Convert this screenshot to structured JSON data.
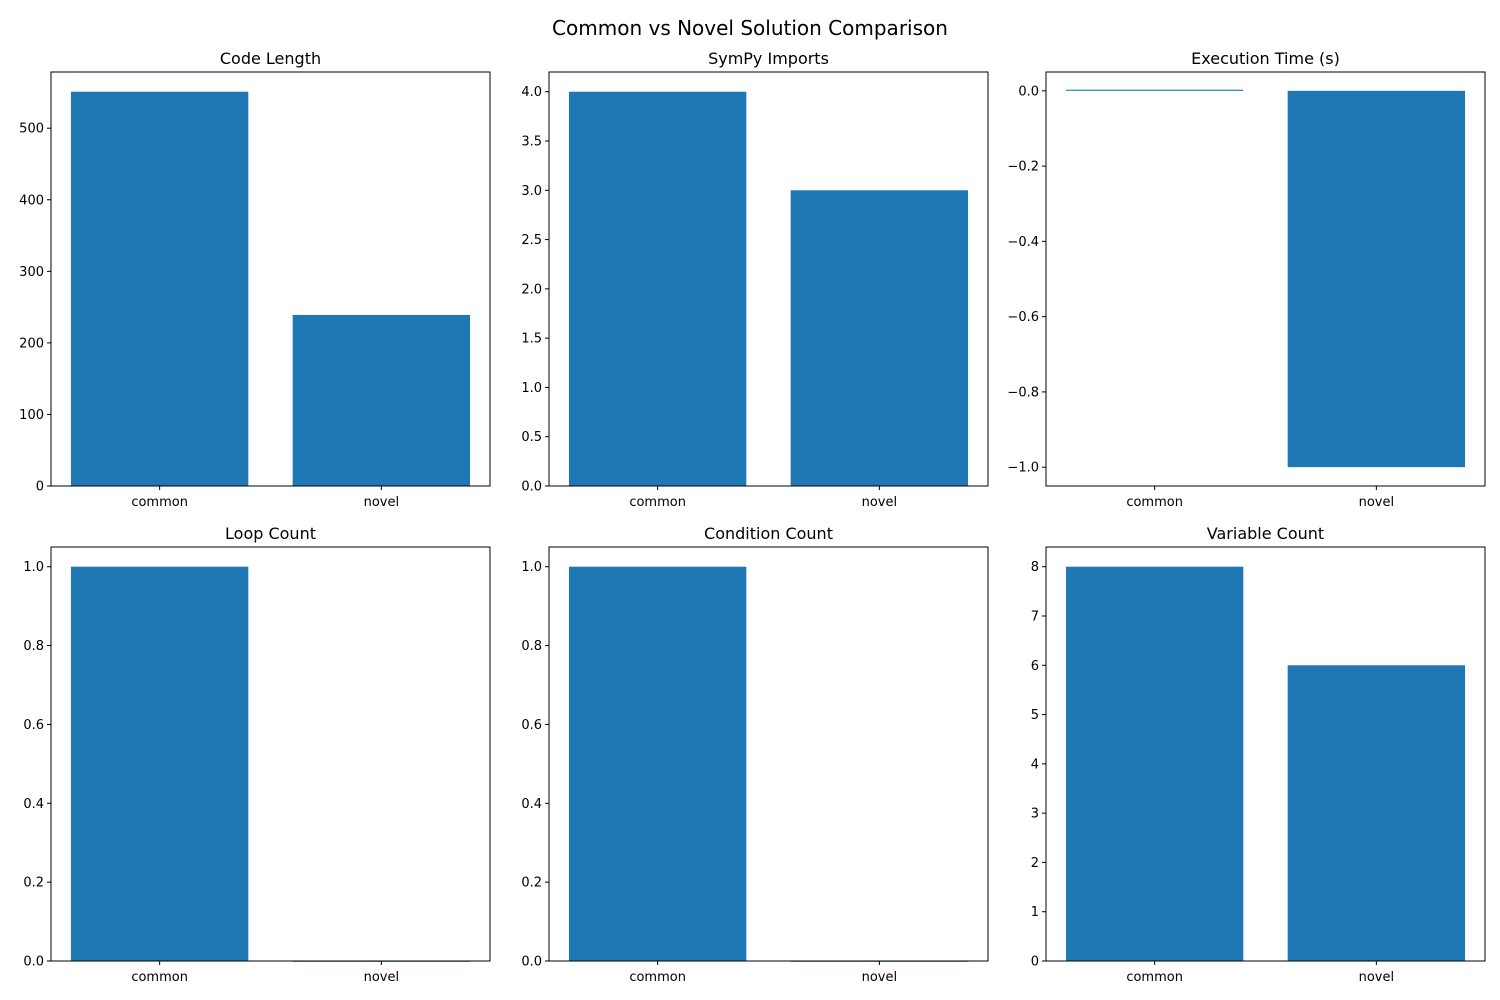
{
  "title": "Common vs Novel Solution Comparison",
  "bar_color": "#1f77b4",
  "chart_data": [
    {
      "type": "bar",
      "title": "Code Length",
      "categories": [
        "common",
        "novel"
      ],
      "values": [
        551,
        239
      ],
      "ylim": [
        0,
        578.55
      ],
      "yticks": [
        0,
        100,
        200,
        300,
        400,
        500
      ],
      "ytick_labels": [
        "0",
        "100",
        "200",
        "300",
        "400",
        "500"
      ]
    },
    {
      "type": "bar",
      "title": "SymPy Imports",
      "categories": [
        "common",
        "novel"
      ],
      "values": [
        4,
        3
      ],
      "ylim": [
        0,
        4.2
      ],
      "yticks": [
        0,
        0.5,
        1,
        1.5,
        2,
        2.5,
        3,
        3.5,
        4
      ],
      "ytick_labels": [
        "0.0",
        "0.5",
        "1.0",
        "1.5",
        "2.0",
        "2.5",
        "3.0",
        "3.5",
        "4.0"
      ]
    },
    {
      "type": "bar",
      "title": "Execution Time (s)",
      "categories": [
        "common",
        "novel"
      ],
      "values": [
        0.003,
        -1
      ],
      "ylim": [
        -1.05,
        0.05
      ],
      "yticks": [
        -1,
        -0.8,
        -0.6,
        -0.4,
        -0.2,
        0
      ],
      "ytick_labels": [
        "−1.0",
        "−0.8",
        "−0.6",
        "−0.4",
        "−0.2",
        "0.0"
      ]
    },
    {
      "type": "bar",
      "title": "Loop Count",
      "categories": [
        "common",
        "novel"
      ],
      "values": [
        1,
        0
      ],
      "ylim": [
        0,
        1.05
      ],
      "yticks": [
        0,
        0.2,
        0.4,
        0.6,
        0.8,
        1
      ],
      "ytick_labels": [
        "0.0",
        "0.2",
        "0.4",
        "0.6",
        "0.8",
        "1.0"
      ]
    },
    {
      "type": "bar",
      "title": "Condition Count",
      "categories": [
        "common",
        "novel"
      ],
      "values": [
        1,
        0
      ],
      "ylim": [
        0,
        1.05
      ],
      "yticks": [
        0,
        0.2,
        0.4,
        0.6,
        0.8,
        1
      ],
      "ytick_labels": [
        "0.0",
        "0.2",
        "0.4",
        "0.6",
        "0.8",
        "1.0"
      ]
    },
    {
      "type": "bar",
      "title": "Variable Count",
      "categories": [
        "common",
        "novel"
      ],
      "values": [
        8,
        6
      ],
      "ylim": [
        0,
        8.4
      ],
      "yticks": [
        0,
        1,
        2,
        3,
        4,
        5,
        6,
        7,
        8
      ],
      "ytick_labels": [
        "0",
        "1",
        "2",
        "3",
        "4",
        "5",
        "6",
        "7",
        "8"
      ]
    }
  ]
}
